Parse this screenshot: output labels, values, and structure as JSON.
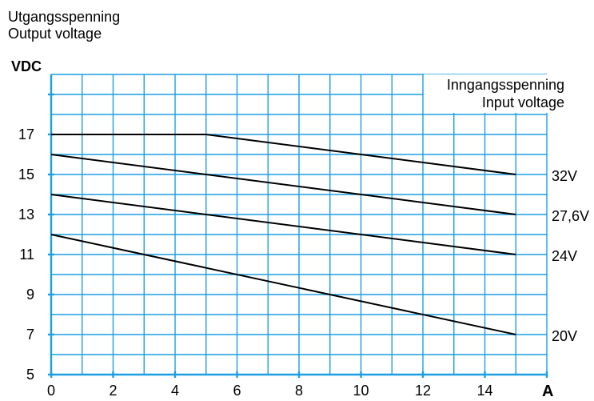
{
  "chart_data": {
    "type": "line",
    "title": [
      "Utgangsspenning",
      "Output voltage"
    ],
    "ylabel": "VDC",
    "xlabel": "A",
    "legend_title": [
      "Inngangsspenning",
      "Input voltage"
    ],
    "legend_placement": "top-right",
    "grid": true,
    "grid_color": "#1a9ee0",
    "xlim": [
      0,
      16
    ],
    "ylim": [
      5,
      20
    ],
    "xticks": [
      0,
      2,
      4,
      6,
      8,
      10,
      12,
      14
    ],
    "yticks": [
      5,
      7,
      9,
      11,
      13,
      15,
      17
    ],
    "series": [
      {
        "name": "32V",
        "points": [
          [
            0,
            17
          ],
          [
            5,
            17
          ],
          [
            15,
            15
          ]
        ]
      },
      {
        "name": "27,6V",
        "points": [
          [
            0,
            16
          ],
          [
            15,
            13
          ]
        ]
      },
      {
        "name": "24V",
        "points": [
          [
            0,
            14
          ],
          [
            15,
            11
          ]
        ]
      },
      {
        "name": "20V",
        "points": [
          [
            0,
            12
          ],
          [
            15,
            7
          ]
        ]
      }
    ]
  }
}
